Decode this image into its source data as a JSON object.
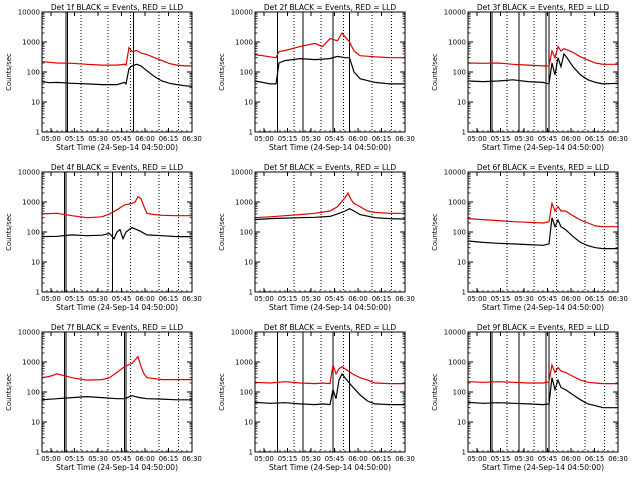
{
  "figure": {
    "ylabel": "Counts/sec",
    "xlabel": "Start Time (24-Sep-14 04:50:00)",
    "legend_black": "BLACK = Events,",
    "legend_red": "RED = LLD",
    "colors": {
      "events": "#000000",
      "lld": "#e00000"
    }
  },
  "chart_data": [
    {
      "type": "line",
      "title": "Det 1f BLACK = Events, RED = LLD",
      "xlabel": "Start Time (24-Sep-14 04:50:00)",
      "ylabel": "Counts/sec",
      "yscale": "log",
      "ylim": [
        1,
        10000
      ],
      "yticks": [
        "1",
        "10",
        "100",
        "1000",
        "10000"
      ],
      "xlim": [
        0,
        100
      ],
      "xticks": [
        "05:00",
        "05:15",
        "05:30",
        "05:45",
        "06:00",
        "06:15",
        "06:30"
      ],
      "dotted_lines": [
        26,
        44,
        59,
        78,
        91
      ],
      "solid_lines": [
        16,
        17,
        61
      ],
      "series": [
        {
          "name": "Events",
          "color": "#000000",
          "x": [
            0,
            5,
            10,
            20,
            30,
            40,
            50,
            55,
            56,
            58,
            60,
            63,
            66,
            70,
            75,
            80,
            85,
            90,
            95,
            100
          ],
          "y": [
            48,
            44,
            45,
            42,
            40,
            38,
            38,
            45,
            40,
            130,
            160,
            180,
            160,
            110,
            70,
            50,
            42,
            38,
            35,
            33
          ]
        },
        {
          "name": "LLD",
          "color": "#e00000",
          "x": [
            0,
            5,
            10,
            20,
            30,
            40,
            50,
            55,
            56,
            58,
            60,
            63,
            66,
            70,
            75,
            80,
            85,
            90,
            95,
            100
          ],
          "y": [
            220,
            210,
            200,
            195,
            180,
            170,
            170,
            180,
            170,
            650,
            480,
            520,
            430,
            380,
            300,
            240,
            190,
            170,
            160,
            160
          ]
        }
      ]
    },
    {
      "type": "line",
      "title": "Det 2f BLACK = Events, RED = LLD",
      "xlabel": "Start Time (24-Sep-14 04:50:00)",
      "ylabel": "Counts/sec",
      "yscale": "log",
      "ylim": [
        1,
        10000
      ],
      "yticks": [
        "1",
        "10",
        "100",
        "1000",
        "10000"
      ],
      "xlim": [
        0,
        100
      ],
      "xticks": [
        "05:00",
        "05:15",
        "05:30",
        "05:45",
        "06:00",
        "06:15",
        "06:30"
      ],
      "dotted_lines": [
        26,
        44,
        59,
        78,
        91
      ],
      "solid_lines": [
        15,
        32,
        52,
        63
      ],
      "series": [
        {
          "name": "Events",
          "color": "#000000",
          "x": [
            0,
            5,
            10,
            14,
            16,
            20,
            30,
            40,
            50,
            55,
            60,
            63,
            66,
            70,
            80,
            90,
            100
          ],
          "y": [
            50,
            45,
            40,
            40,
            200,
            240,
            280,
            260,
            280,
            330,
            300,
            300,
            100,
            60,
            45,
            40,
            40
          ]
        },
        {
          "name": "LLD",
          "color": "#e00000",
          "x": [
            0,
            5,
            10,
            14,
            16,
            20,
            30,
            40,
            45,
            50,
            55,
            58,
            60,
            63,
            66,
            70,
            80,
            90,
            100
          ],
          "y": [
            380,
            350,
            320,
            300,
            480,
            520,
            700,
            900,
            700,
            1300,
            1100,
            2000,
            1500,
            1000,
            500,
            350,
            320,
            300,
            300
          ]
        }
      ]
    },
    {
      "type": "line",
      "title": "Det 3f BLACK = Events, RED = LLD",
      "xlabel": "Start Time (24-Sep-14 04:50:00)",
      "ylabel": "Counts/sec",
      "yscale": "log",
      "ylim": [
        1,
        10000
      ],
      "yticks": [
        "1",
        "10",
        "100",
        "1000",
        "10000"
      ],
      "xlim": [
        0,
        100
      ],
      "xticks": [
        "05:00",
        "05:15",
        "05:30",
        "05:45",
        "06:00",
        "06:15",
        "06:30"
      ],
      "dotted_lines": [
        26,
        44,
        59,
        78,
        91
      ],
      "solid_lines": [
        15,
        16,
        34,
        52,
        54
      ],
      "series": [
        {
          "name": "Events",
          "color": "#000000",
          "x": [
            0,
            10,
            20,
            30,
            40,
            50,
            54,
            56,
            58,
            60,
            62,
            64,
            66,
            70,
            75,
            80,
            85,
            90,
            100
          ],
          "y": [
            50,
            48,
            50,
            55,
            48,
            45,
            40,
            200,
            80,
            300,
            150,
            400,
            300,
            150,
            80,
            55,
            45,
            40,
            42
          ]
        },
        {
          "name": "LLD",
          "color": "#e00000",
          "x": [
            0,
            10,
            20,
            30,
            40,
            50,
            54,
            56,
            58,
            60,
            62,
            64,
            66,
            70,
            75,
            80,
            85,
            90,
            100
          ],
          "y": [
            200,
            195,
            200,
            180,
            170,
            160,
            160,
            500,
            300,
            700,
            500,
            600,
            550,
            450,
            320,
            250,
            200,
            180,
            180
          ]
        }
      ]
    },
    {
      "type": "line",
      "title": "Det 4f BLACK = Events, RED = LLD",
      "xlabel": "Start Time (24-Sep-14 04:50:00)",
      "ylabel": "Counts/sec",
      "yscale": "log",
      "ylim": [
        1,
        10000
      ],
      "yticks": [
        "1",
        "10",
        "100",
        "1000",
        "10000"
      ],
      "xlim": [
        0,
        100
      ],
      "xticks": [
        "05:00",
        "05:15",
        "05:30",
        "05:45",
        "06:00",
        "06:15",
        "06:30"
      ],
      "dotted_lines": [
        26,
        44,
        59,
        78,
        91
      ],
      "solid_lines": [
        15,
        16,
        47
      ],
      "series": [
        {
          "name": "Events",
          "color": "#000000",
          "x": [
            0,
            10,
            20,
            30,
            40,
            45,
            48,
            50,
            52,
            54,
            56,
            60,
            65,
            70,
            80,
            90,
            100
          ],
          "y": [
            70,
            72,
            80,
            75,
            78,
            90,
            60,
            100,
            120,
            60,
            100,
            140,
            110,
            80,
            75,
            70,
            70
          ]
        },
        {
          "name": "LLD",
          "color": "#e00000",
          "x": [
            0,
            10,
            20,
            30,
            40,
            45,
            50,
            55,
            60,
            62,
            64,
            66,
            68,
            70,
            75,
            80,
            90,
            100
          ],
          "y": [
            400,
            420,
            350,
            300,
            320,
            400,
            550,
            800,
            900,
            1000,
            1500,
            1300,
            700,
            420,
            380,
            360,
            350,
            350
          ]
        }
      ]
    },
    {
      "type": "line",
      "title": "Det 5f BLACK = Events, RED = LLD",
      "xlabel": "Start Time (24-Sep-14 04:50:00)",
      "ylabel": "Counts/sec",
      "yscale": "log",
      "ylim": [
        1,
        10000
      ],
      "yticks": [
        "1",
        "10",
        "100",
        "1000",
        "10000"
      ],
      "xlim": [
        0,
        100
      ],
      "xticks": [
        "05:00",
        "05:15",
        "05:30",
        "05:45",
        "06:00",
        "06:15",
        "06:30"
      ],
      "dotted_lines": [
        26,
        44,
        59,
        78,
        91
      ],
      "solid_lines": [],
      "series": [
        {
          "name": "Events",
          "color": "#000000",
          "x": [
            0,
            10,
            20,
            30,
            40,
            50,
            55,
            60,
            63,
            66,
            70,
            80,
            90,
            100
          ],
          "y": [
            260,
            280,
            290,
            300,
            310,
            330,
            400,
            500,
            600,
            500,
            380,
            300,
            280,
            270
          ]
        },
        {
          "name": "LLD",
          "color": "#e00000",
          "x": [
            0,
            10,
            20,
            30,
            40,
            50,
            55,
            60,
            62,
            64,
            66,
            70,
            75,
            80,
            90,
            100
          ],
          "y": [
            300,
            320,
            350,
            380,
            420,
            500,
            700,
            1400,
            2000,
            1200,
            900,
            700,
            500,
            450,
            420,
            420
          ]
        }
      ]
    },
    {
      "type": "line",
      "title": "Det 6f BLACK = Events, RED = LLD",
      "xlabel": "Start Time (24-Sep-14 04:50:00)",
      "ylabel": "Counts/sec",
      "yscale": "log",
      "ylim": [
        1,
        10000
      ],
      "yticks": [
        "1",
        "10",
        "100",
        "1000",
        "10000"
      ],
      "xlim": [
        0,
        100
      ],
      "xticks": [
        "05:00",
        "05:15",
        "05:30",
        "05:45",
        "06:00",
        "06:15",
        "06:30"
      ],
      "dotted_lines": [
        26,
        44,
        59,
        78,
        91
      ],
      "solid_lines": [],
      "series": [
        {
          "name": "Events",
          "color": "#000000",
          "x": [
            0,
            10,
            20,
            30,
            40,
            50,
            54,
            56,
            58,
            60,
            62,
            65,
            70,
            75,
            80,
            85,
            90,
            100
          ],
          "y": [
            50,
            45,
            42,
            40,
            38,
            36,
            40,
            300,
            150,
            250,
            150,
            120,
            70,
            45,
            35,
            30,
            28,
            28
          ]
        },
        {
          "name": "LLD",
          "color": "#e00000",
          "x": [
            0,
            10,
            20,
            30,
            40,
            50,
            54,
            56,
            58,
            60,
            62,
            65,
            70,
            75,
            80,
            85,
            90,
            100
          ],
          "y": [
            280,
            260,
            240,
            220,
            210,
            200,
            220,
            900,
            500,
            700,
            500,
            500,
            350,
            250,
            200,
            160,
            150,
            150
          ]
        }
      ]
    },
    {
      "type": "line",
      "title": "Det 7f BLACK = Events, RED = LLD",
      "xlabel": "Start Time (24-Sep-14 04:50:00)",
      "ylabel": "Counts/sec",
      "yscale": "log",
      "ylim": [
        1,
        10000
      ],
      "yticks": [
        "1",
        "10",
        "100",
        "1000",
        "10000"
      ],
      "xlim": [
        0,
        100
      ],
      "xticks": [
        "05:00",
        "05:15",
        "05:30",
        "05:45",
        "06:00",
        "06:15",
        "06:30"
      ],
      "dotted_lines": [
        26,
        44,
        59,
        78,
        91
      ],
      "solid_lines": [
        15,
        16,
        55,
        56
      ],
      "series": [
        {
          "name": "Events",
          "color": "#000000",
          "x": [
            0,
            10,
            20,
            30,
            40,
            50,
            55,
            60,
            65,
            70,
            80,
            90,
            100
          ],
          "y": [
            55,
            60,
            65,
            70,
            65,
            60,
            60,
            75,
            65,
            60,
            58,
            55,
            55
          ]
        },
        {
          "name": "LLD",
          "color": "#e00000",
          "x": [
            0,
            5,
            10,
            20,
            30,
            40,
            45,
            50,
            55,
            60,
            64,
            66,
            68,
            70,
            80,
            90,
            100
          ],
          "y": [
            300,
            330,
            400,
            300,
            250,
            260,
            300,
            450,
            700,
            900,
            1500,
            700,
            400,
            300,
            260,
            260,
            260
          ]
        }
      ]
    },
    {
      "type": "line",
      "title": "Det 8f BLACK = Events, RED = LLD",
      "xlabel": "Start Time (24-Sep-14 04:50:00)",
      "ylabel": "Counts/sec",
      "yscale": "log",
      "ylim": [
        1,
        10000
      ],
      "yticks": [
        "1",
        "10",
        "100",
        "1000",
        "10000"
      ],
      "xlim": [
        0,
        100
      ],
      "xticks": [
        "05:00",
        "05:15",
        "05:30",
        "05:45",
        "06:00",
        "06:15",
        "06:30"
      ],
      "dotted_lines": [
        26,
        44,
        59,
        78,
        91
      ],
      "solid_lines": [
        15,
        32,
        52,
        63
      ],
      "series": [
        {
          "name": "Events",
          "color": "#000000",
          "x": [
            0,
            10,
            20,
            30,
            40,
            45,
            50,
            52,
            54,
            56,
            58,
            60,
            65,
            70,
            75,
            80,
            90,
            100
          ],
          "y": [
            45,
            42,
            44,
            40,
            38,
            40,
            38,
            120,
            60,
            250,
            400,
            300,
            150,
            80,
            50,
            40,
            38,
            38
          ]
        },
        {
          "name": "LLD",
          "color": "#e00000",
          "x": [
            0,
            10,
            20,
            30,
            40,
            45,
            50,
            52,
            54,
            56,
            58,
            60,
            65,
            70,
            75,
            80,
            90,
            100
          ],
          "y": [
            210,
            200,
            220,
            200,
            190,
            200,
            190,
            800,
            400,
            600,
            700,
            600,
            400,
            300,
            250,
            200,
            190,
            190
          ]
        }
      ]
    },
    {
      "type": "line",
      "title": "Det 9f BLACK = Events, RED = LLD",
      "xlabel": "Start Time (24-Sep-14 04:50:00)",
      "ylabel": "Counts/sec",
      "yscale": "log",
      "ylim": [
        1,
        10000
      ],
      "yticks": [
        "1",
        "10",
        "100",
        "1000",
        "10000"
      ],
      "xlim": [
        0,
        100
      ],
      "xticks": [
        "05:00",
        "05:15",
        "05:30",
        "05:45",
        "06:00",
        "06:15",
        "06:30"
      ],
      "dotted_lines": [
        26,
        44,
        59,
        78,
        91
      ],
      "solid_lines": [
        15,
        16,
        34,
        52,
        54
      ],
      "series": [
        {
          "name": "Events",
          "color": "#000000",
          "x": [
            0,
            10,
            20,
            30,
            40,
            50,
            54,
            56,
            58,
            60,
            62,
            65,
            70,
            75,
            80,
            85,
            90,
            100
          ],
          "y": [
            45,
            42,
            44,
            42,
            40,
            38,
            40,
            300,
            120,
            250,
            140,
            120,
            80,
            55,
            40,
            35,
            30,
            30
          ]
        },
        {
          "name": "LLD",
          "color": "#e00000",
          "x": [
            0,
            10,
            20,
            30,
            40,
            50,
            54,
            56,
            58,
            60,
            62,
            65,
            70,
            75,
            80,
            85,
            90,
            100
          ],
          "y": [
            220,
            210,
            220,
            210,
            200,
            200,
            220,
            800,
            450,
            650,
            500,
            450,
            330,
            250,
            210,
            200,
            190,
            190
          ]
        }
      ]
    }
  ]
}
